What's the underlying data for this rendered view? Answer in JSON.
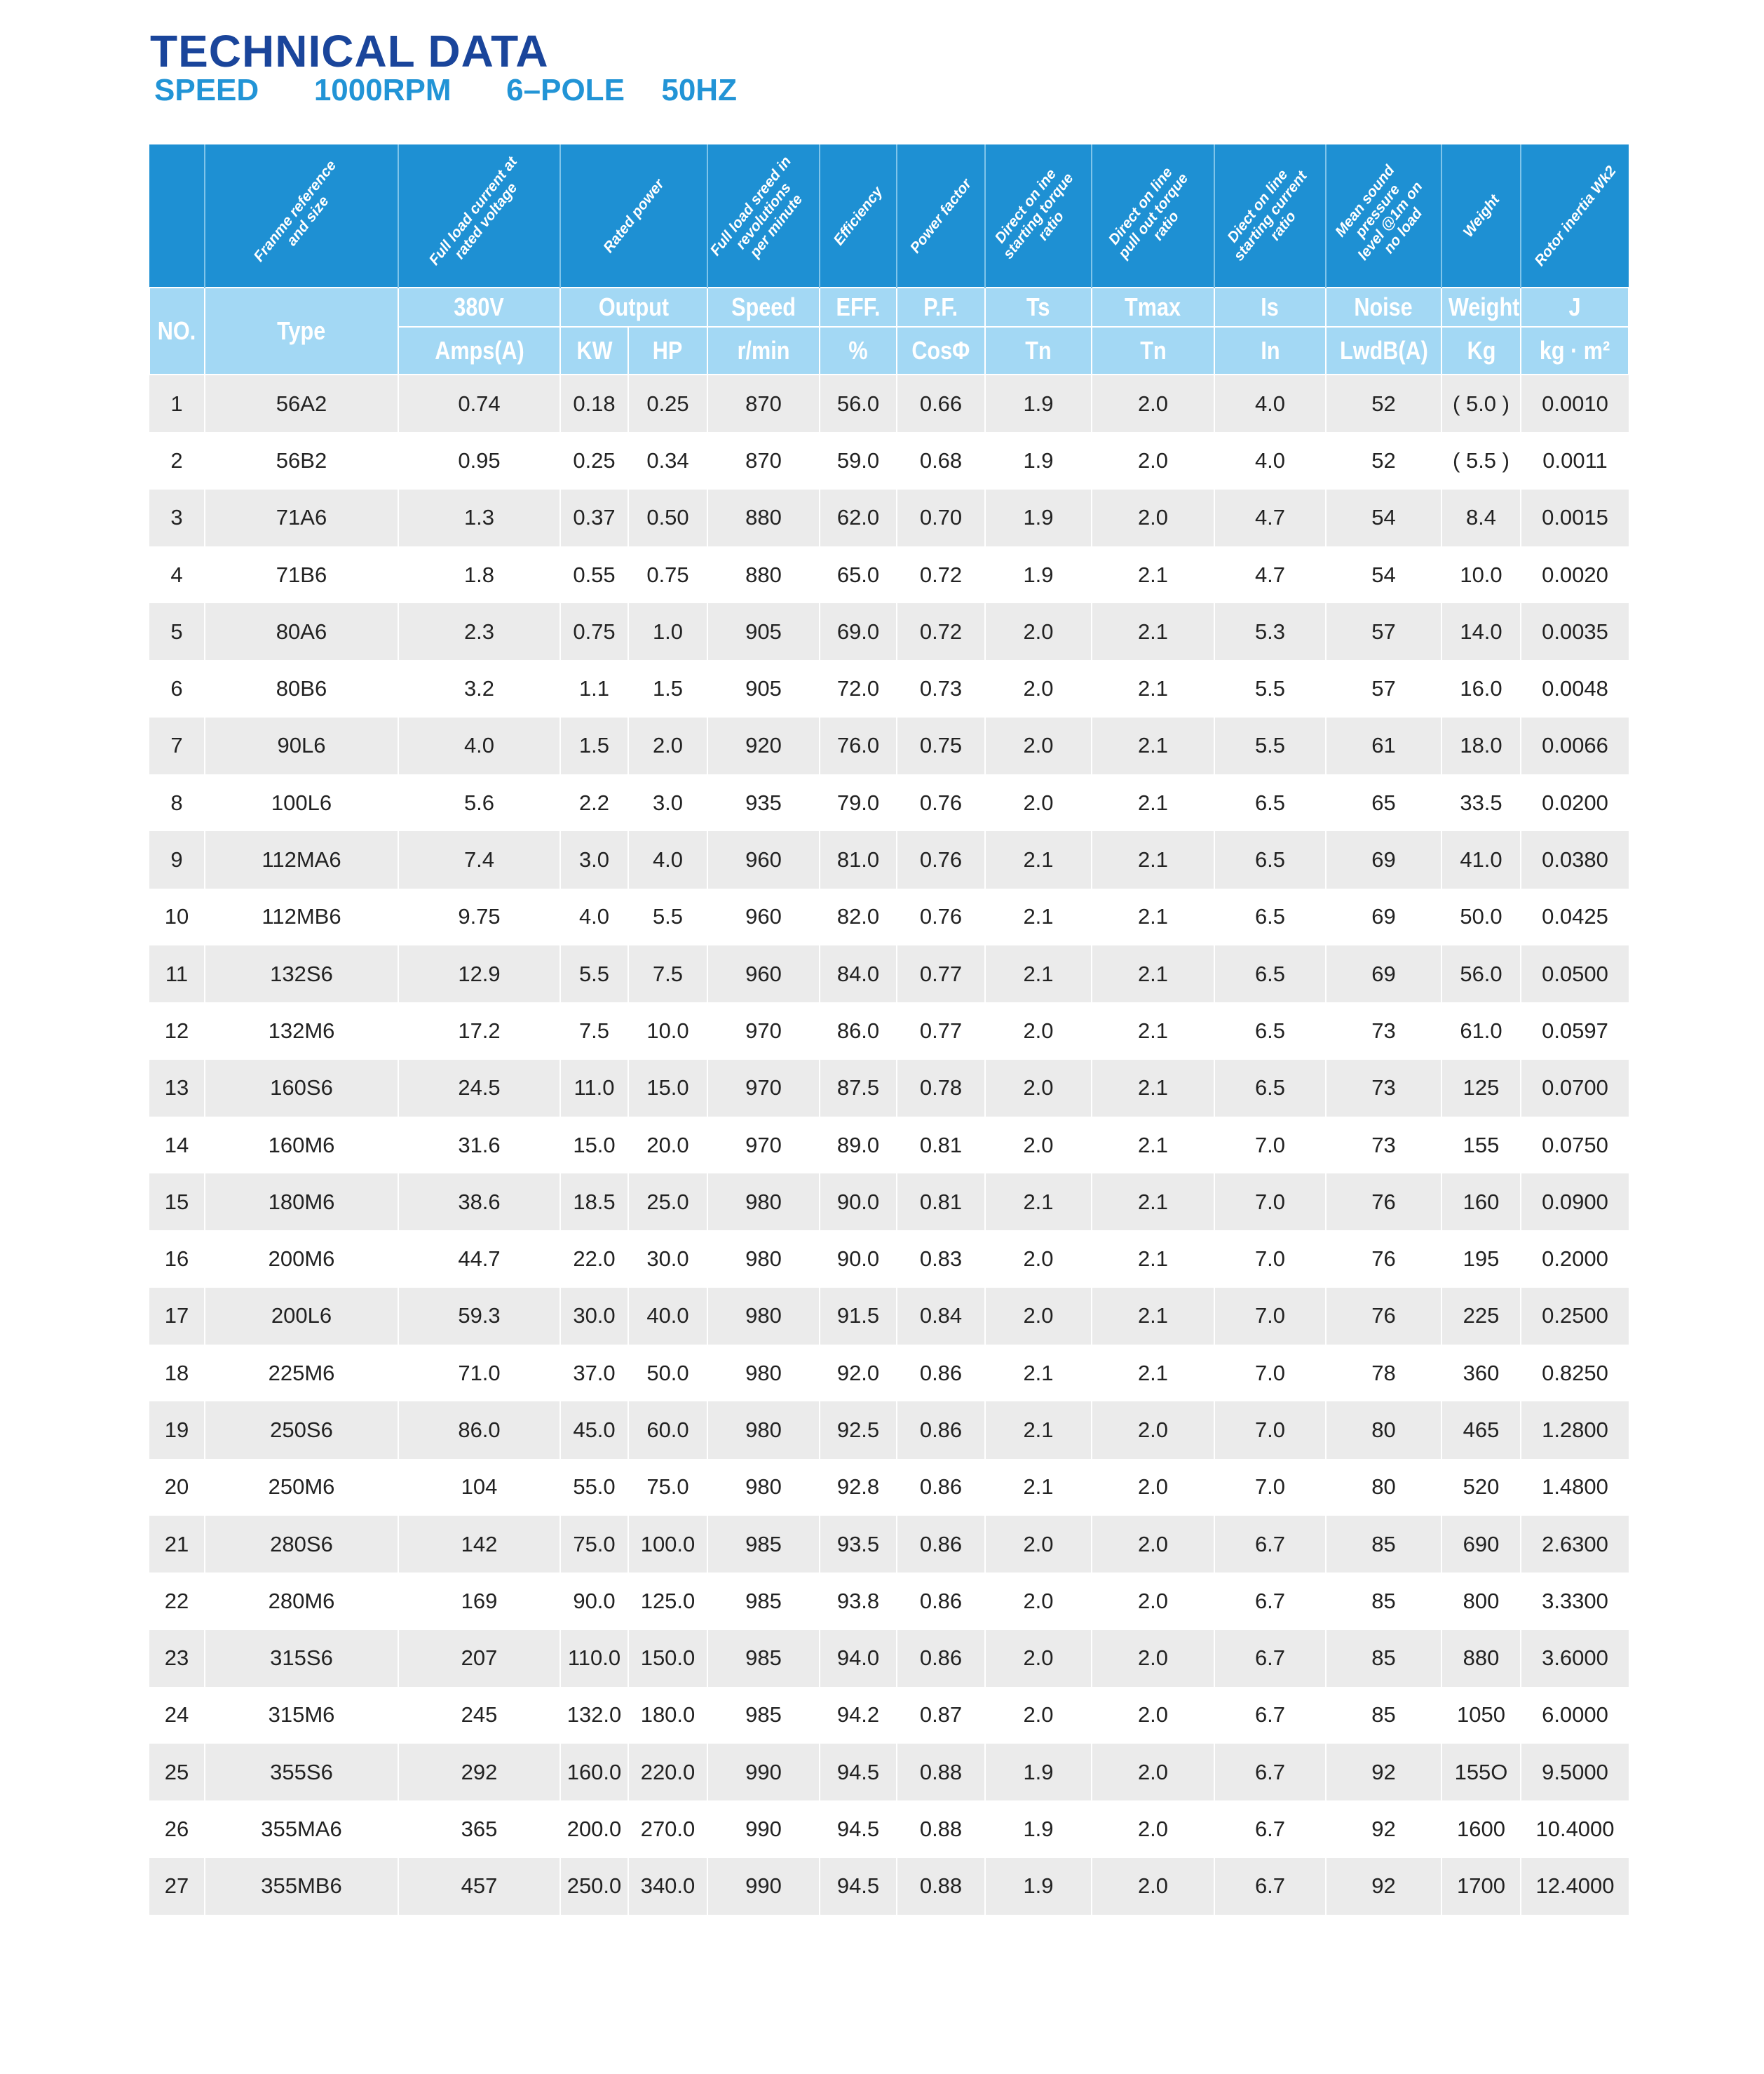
{
  "title": "TECHNICAL DATA",
  "subtitle": "SPEED   1000RPM   6–POLE  50HZ",
  "colors": {
    "title": "#1a459b",
    "subtitle": "#2294d6",
    "header_dark": "#1e90d3",
    "header_light": "#a3d8f4",
    "row_stripe": "#ebebeb"
  },
  "header": {
    "descriptions": [
      "Franme reference\nand size",
      "Full load current at\nrated voltage",
      "Rated power",
      "Full load sreed in\nrevolutions\nper minute",
      "Efficiency",
      "Power factor",
      "Direct on ine\nstarting torque\nratio",
      "Direct on line\npull out torque\nratio",
      "Diect on line\nstarting current\nratio",
      "Mean sound\npressure\nlevel @1m on\nno load",
      "Weight",
      "Rotor inertia Wk2"
    ],
    "no": "NO.",
    "type": "Type",
    "row1": [
      "380V",
      "Output",
      "Speed",
      "EFF.",
      "P.F.",
      "Ts",
      "Tmax",
      "Is",
      "Noise",
      "Weight",
      "J"
    ],
    "row2": [
      "Amps(A)",
      "KW",
      "HP",
      "r/min",
      "%",
      "CosΦ",
      "Tn",
      "Tn",
      "In",
      "LwdB(A)",
      "Kg",
      "kg · m²"
    ]
  },
  "rows": [
    [
      "1",
      "56A2",
      "0.74",
      "0.18",
      "0.25",
      "870",
      "56.0",
      "0.66",
      "1.9",
      "2.0",
      "4.0",
      "52",
      "( 5.0 )",
      "0.0010"
    ],
    [
      "2",
      "56B2",
      "0.95",
      "0.25",
      "0.34",
      "870",
      "59.0",
      "0.68",
      "1.9",
      "2.0",
      "4.0",
      "52",
      "( 5.5 )",
      "0.0011"
    ],
    [
      "3",
      "71A6",
      "1.3",
      "0.37",
      "0.50",
      "880",
      "62.0",
      "0.70",
      "1.9",
      "2.0",
      "4.7",
      "54",
      "8.4",
      "0.0015"
    ],
    [
      "4",
      "71B6",
      "1.8",
      "0.55",
      "0.75",
      "880",
      "65.0",
      "0.72",
      "1.9",
      "2.1",
      "4.7",
      "54",
      "10.0",
      "0.0020"
    ],
    [
      "5",
      "80A6",
      "2.3",
      "0.75",
      "1.0",
      "905",
      "69.0",
      "0.72",
      "2.0",
      "2.1",
      "5.3",
      "57",
      "14.0",
      "0.0035"
    ],
    [
      "6",
      "80B6",
      "3.2",
      "1.1",
      "1.5",
      "905",
      "72.0",
      "0.73",
      "2.0",
      "2.1",
      "5.5",
      "57",
      "16.0",
      "0.0048"
    ],
    [
      "7",
      "90L6",
      "4.0",
      "1.5",
      "2.0",
      "920",
      "76.0",
      "0.75",
      "2.0",
      "2.1",
      "5.5",
      "61",
      "18.0",
      "0.0066"
    ],
    [
      "8",
      "100L6",
      "5.6",
      "2.2",
      "3.0",
      "935",
      "79.0",
      "0.76",
      "2.0",
      "2.1",
      "6.5",
      "65",
      "33.5",
      "0.0200"
    ],
    [
      "9",
      "112MA6",
      "7.4",
      "3.0",
      "4.0",
      "960",
      "81.0",
      "0.76",
      "2.1",
      "2.1",
      "6.5",
      "69",
      "41.0",
      "0.0380"
    ],
    [
      "10",
      "112MB6",
      "9.75",
      "4.0",
      "5.5",
      "960",
      "82.0",
      "0.76",
      "2.1",
      "2.1",
      "6.5",
      "69",
      "50.0",
      "0.0425"
    ],
    [
      "11",
      "132S6",
      "12.9",
      "5.5",
      "7.5",
      "960",
      "84.0",
      "0.77",
      "2.1",
      "2.1",
      "6.5",
      "69",
      "56.0",
      "0.0500"
    ],
    [
      "12",
      "132M6",
      "17.2",
      "7.5",
      "10.0",
      "970",
      "86.0",
      "0.77",
      "2.0",
      "2.1",
      "6.5",
      "73",
      "61.0",
      "0.0597"
    ],
    [
      "13",
      "160S6",
      "24.5",
      "11.0",
      "15.0",
      "970",
      "87.5",
      "0.78",
      "2.0",
      "2.1",
      "6.5",
      "73",
      "125",
      "0.0700"
    ],
    [
      "14",
      "160M6",
      "31.6",
      "15.0",
      "20.0",
      "970",
      "89.0",
      "0.81",
      "2.0",
      "2.1",
      "7.0",
      "73",
      "155",
      "0.0750"
    ],
    [
      "15",
      "180M6",
      "38.6",
      "18.5",
      "25.0",
      "980",
      "90.0",
      "0.81",
      "2.1",
      "2.1",
      "7.0",
      "76",
      "160",
      "0.0900"
    ],
    [
      "16",
      "200M6",
      "44.7",
      "22.0",
      "30.0",
      "980",
      "90.0",
      "0.83",
      "2.0",
      "2.1",
      "7.0",
      "76",
      "195",
      "0.2000"
    ],
    [
      "17",
      "200L6",
      "59.3",
      "30.0",
      "40.0",
      "980",
      "91.5",
      "0.84",
      "2.0",
      "2.1",
      "7.0",
      "76",
      "225",
      "0.2500"
    ],
    [
      "18",
      "225M6",
      "71.0",
      "37.0",
      "50.0",
      "980",
      "92.0",
      "0.86",
      "2.1",
      "2.1",
      "7.0",
      "78",
      "360",
      "0.8250"
    ],
    [
      "19",
      "250S6",
      "86.0",
      "45.0",
      "60.0",
      "980",
      "92.5",
      "0.86",
      "2.1",
      "2.0",
      "7.0",
      "80",
      "465",
      "1.2800"
    ],
    [
      "20",
      "250M6",
      "104",
      "55.0",
      "75.0",
      "980",
      "92.8",
      "0.86",
      "2.1",
      "2.0",
      "7.0",
      "80",
      "520",
      "1.4800"
    ],
    [
      "21",
      "280S6",
      "142",
      "75.0",
      "100.0",
      "985",
      "93.5",
      "0.86",
      "2.0",
      "2.0",
      "6.7",
      "85",
      "690",
      "2.6300"
    ],
    [
      "22",
      "280M6",
      "169",
      "90.0",
      "125.0",
      "985",
      "93.8",
      "0.86",
      "2.0",
      "2.0",
      "6.7",
      "85",
      "800",
      "3.3300"
    ],
    [
      "23",
      "315S6",
      "207",
      "110.0",
      "150.0",
      "985",
      "94.0",
      "0.86",
      "2.0",
      "2.0",
      "6.7",
      "85",
      "880",
      "3.6000"
    ],
    [
      "24",
      "315M6",
      "245",
      "132.0",
      "180.0",
      "985",
      "94.2",
      "0.87",
      "2.0",
      "2.0",
      "6.7",
      "85",
      "1050",
      "6.0000"
    ],
    [
      "25",
      "355S6",
      "292",
      "160.0",
      "220.0",
      "990",
      "94.5",
      "0.88",
      "1.9",
      "2.0",
      "6.7",
      "92",
      "155O",
      "9.5000"
    ],
    [
      "26",
      "355MA6",
      "365",
      "200.0",
      "270.0",
      "990",
      "94.5",
      "0.88",
      "1.9",
      "2.0",
      "6.7",
      "92",
      "1600",
      "10.4000"
    ],
    [
      "27",
      "355MB6",
      "457",
      "250.0",
      "340.0",
      "990",
      "94.5",
      "0.88",
      "1.9",
      "2.0",
      "6.7",
      "92",
      "1700",
      "12.4000"
    ]
  ]
}
